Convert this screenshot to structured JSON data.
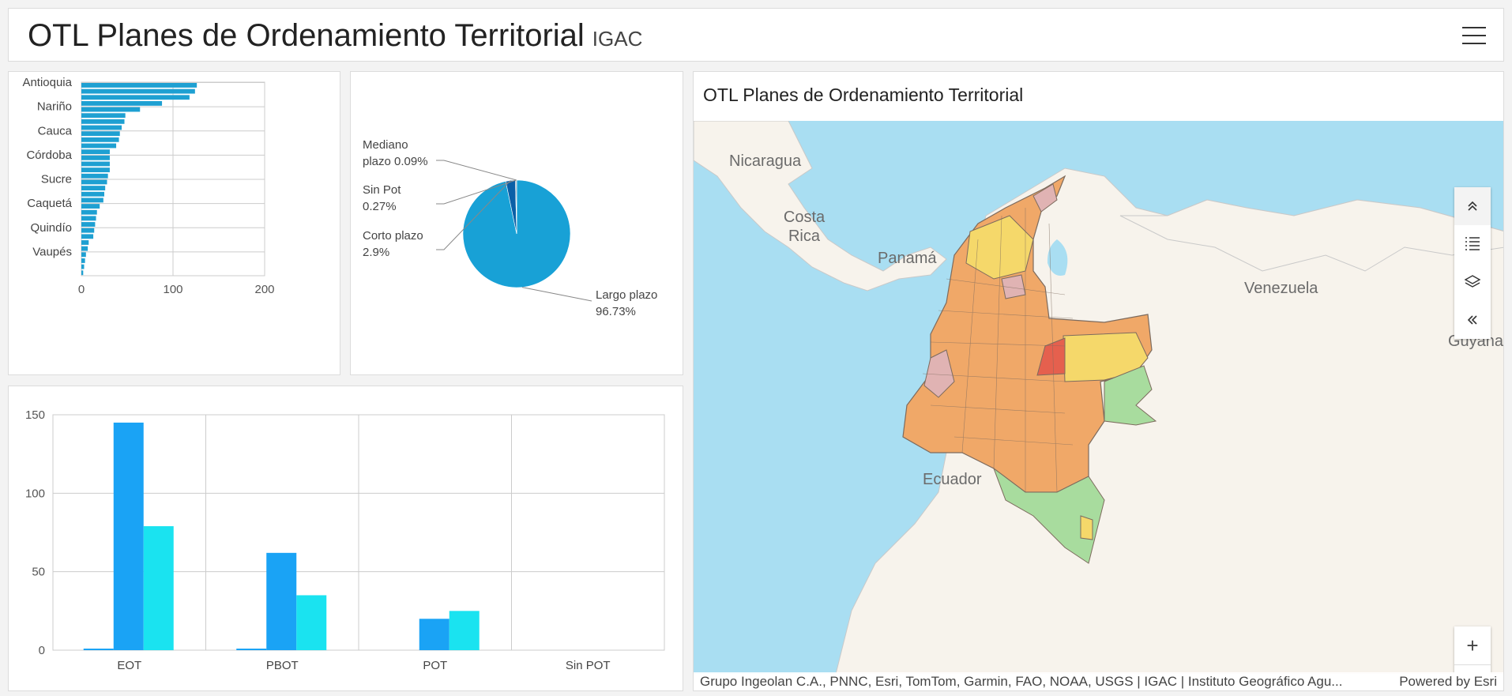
{
  "header": {
    "title": "OTL Planes de Ordenamiento Territorial",
    "subtitle": "IGAC"
  },
  "colors": {
    "bar": "#1ea0d2",
    "pie_main": "#18a1d6",
    "pie_dark": "#0a5fa7",
    "series1": "#1aa3f5",
    "series2": "#1ae3f0",
    "grid": "#cccccc"
  },
  "icons": [
    "menu-icon",
    "collapse-up-icon",
    "legend-list-icon",
    "layers-icon",
    "collapse-left-icon",
    "zoom-in-icon",
    "zoom-out-icon"
  ],
  "chart_data": [
    {
      "type": "bar",
      "orientation": "horizontal",
      "categories": [
        "Antioquia",
        "",
        "",
        "",
        "Nariño",
        "",
        "",
        "",
        "Cauca",
        "",
        "",
        "",
        "Córdoba",
        "",
        "",
        "",
        "Sucre",
        "",
        "",
        "",
        "Caquetá",
        "",
        "",
        "",
        "Quindío",
        "",
        "",
        "",
        "Vaupés",
        "",
        "",
        ""
      ],
      "values": [
        126,
        124,
        118,
        88,
        64,
        48,
        47,
        44,
        42,
        41,
        38,
        31,
        31,
        31,
        31,
        29,
        28,
        26,
        25,
        24,
        20,
        17,
        16,
        15,
        14,
        13,
        8,
        7,
        5,
        4,
        3,
        2
      ],
      "xlim": [
        0,
        200
      ],
      "xticks": [
        0,
        100,
        200
      ],
      "grid": true
    },
    {
      "type": "pie",
      "slices": [
        {
          "label": "Largo plazo",
          "value": 96.73,
          "display": "96.73%"
        },
        {
          "label": "Corto plazo",
          "value": 2.9,
          "display": "2.9%"
        },
        {
          "label": "Sin Pot",
          "value": 0.27,
          "display": "0.27%"
        },
        {
          "label": "Mediano plazo",
          "value": 0.09,
          "display": "0.09%"
        }
      ]
    },
    {
      "type": "bar",
      "categories": [
        "EOT",
        "PBOT",
        "POT",
        "Sin POT"
      ],
      "series": [
        {
          "values": [
            1,
            1,
            0,
            0
          ]
        },
        {
          "values": [
            145,
            62,
            20,
            0
          ]
        },
        {
          "values": [
            79,
            35,
            25,
            0
          ]
        }
      ],
      "ylim": [
        0,
        150
      ],
      "yticks": [
        0,
        50,
        100,
        150
      ],
      "grid": true
    }
  ],
  "map": {
    "title": "OTL Planes de Ordenamiento Territorial",
    "labels": {
      "nicaragua": "Nicaragua",
      "costa_rica": "Costa Rica",
      "panama": "Panamá",
      "venezuela": "Venezuela",
      "guyana": "Guyana",
      "ecuador": "Ecuador"
    },
    "attribution": "Grupo Ingeolan C.A., PNNC, Esri, TomTom, Garmin, FAO, NOAA, USGS | IGAC | Instituto Geográfico Agu...",
    "powered_by": "Powered by Esri",
    "zoom_in": "+",
    "zoom_out": "–",
    "colors": {
      "water": "#a9def2",
      "land": "#f7f3ec",
      "region_orange": "#f0a868",
      "region_yellow": "#f5d86a",
      "region_green": "#a8dc9e",
      "region_pink": "#e0b3b3",
      "region_red": "#e5604e"
    }
  }
}
